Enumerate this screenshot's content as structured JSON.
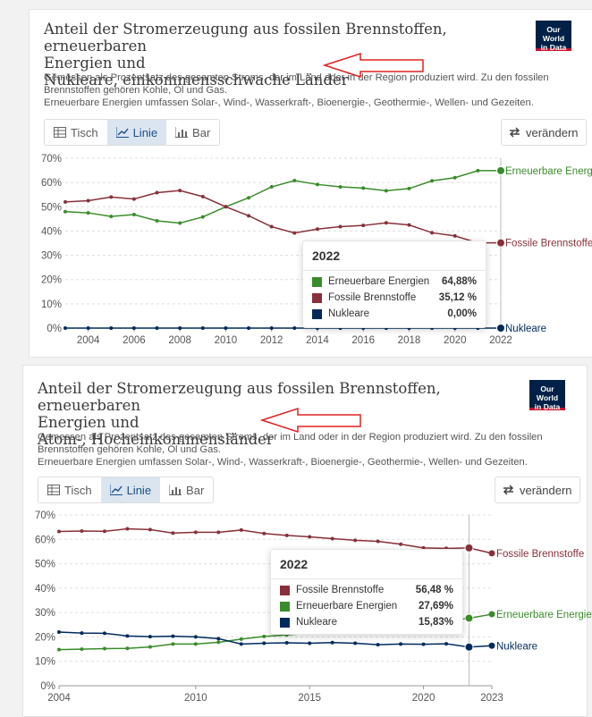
{
  "panels": [
    {
      "title_line1": "Anteil der Stromerzeugung aus fossilen Brennstoffen, erneuerbaren",
      "title_line2": "Energien und",
      "title_line3": "Nukleare, einkommensschwache Länder",
      "subtitle_line1": "Gemessen als Prozentsatz des gesamten Stroms, der im Land oder in der Region produziert wird. Zu den fossilen",
      "subtitle_line2": "Brennstoffen gehören Kohle, Öl und Gas.",
      "subtitle_line3": "Erneuerbare Energien umfassen Solar-, Wind-, Wasserkraft-, Bioenergie-, Geothermie-, Wellen- und Gezeiten.",
      "logo_line1": "Our World",
      "logo_line2": "in Data",
      "tabs": [
        "Tisch",
        "Linie",
        "Bar"
      ],
      "active_tab": "Linie",
      "change_label": "verändern",
      "tooltip": {
        "year": "2022",
        "rows": [
          {
            "name": "Erneuerbare Energien",
            "value": "64,88%",
            "color": "#3a8c2a"
          },
          {
            "name": "Fossile Brennstoffe",
            "value": "35,12 %",
            "color": "#883039"
          },
          {
            "name": "Nukleare",
            "value": "0,00%",
            "color": "#002a5c"
          }
        ]
      }
    },
    {
      "title_line1": "Anteil der Stromerzeugung aus fossilen Brennstoffen, erneuerbaren",
      "title_line2": "Energien und",
      "title_line3": "Atom-, Hocheinkommensländer",
      "subtitle_line1": "Gemessen als Prozentsatz des gesamten Stroms, der im Land oder in der Region produziert wird. Zu den fossilen",
      "subtitle_line2": "Brennstoffen gehören Kohle, Öl und Gas.",
      "subtitle_line3": "Erneuerbare Energien umfassen Solar-, Wind-, Wasserkraft-, Bioenergie-, Geothermie-, Wellen- und Gezeiten.",
      "logo_line1": "Our World",
      "logo_line2": "in Data",
      "tabs": [
        "Tisch",
        "Linie",
        "Bar"
      ],
      "active_tab": "Linie",
      "change_label": "verändern",
      "tooltip": {
        "year": "2022",
        "rows": [
          {
            "name": "Fossile Brennstoffe",
            "value": "56,48 %",
            "color": "#883039"
          },
          {
            "name": "Erneuerbare Energien",
            "value": "27,69%",
            "color": "#3a8c2a"
          },
          {
            "name": "Nukleare",
            "value": "15,83%",
            "color": "#002a5c"
          }
        ]
      }
    }
  ],
  "chart_data": [
    {
      "type": "line",
      "title": "Anteil der Stromerzeugung aus fossilen Brennstoffen, erneuerbaren Energien und Nukleare, einkommensschwache Länder",
      "xlim": [
        2003,
        2022
      ],
      "ylim": [
        0,
        70
      ],
      "x_ticks": [
        "2004",
        "2006",
        "2008",
        "2010",
        "2012",
        "2014",
        "2016",
        "2018",
        "2020",
        "2022"
      ],
      "y_ticks": [
        "0%",
        "10%",
        "20%",
        "30%",
        "40%",
        "50%",
        "60%",
        "70%"
      ],
      "x": [
        2003,
        2004,
        2005,
        2006,
        2007,
        2008,
        2009,
        2010,
        2011,
        2012,
        2013,
        2014,
        2015,
        2016,
        2017,
        2018,
        2019,
        2020,
        2021,
        2022
      ],
      "series": [
        {
          "name": "Erneuerbare Energien",
          "color": "#3a8c2a",
          "values": [
            48,
            47.5,
            46,
            46.8,
            44.2,
            43.3,
            45.8,
            50,
            53.7,
            58.2,
            60.8,
            59.2,
            58.2,
            57.7,
            56.6,
            57.5,
            60.7,
            62,
            64.88,
            64.88
          ]
        },
        {
          "name": "Fossile Brennstoffe",
          "color": "#883039",
          "values": [
            52,
            52.5,
            54,
            53.2,
            55.8,
            56.7,
            54.2,
            50,
            46.3,
            41.8,
            39.2,
            40.8,
            41.8,
            42.3,
            43.4,
            42.5,
            39.3,
            38,
            35.12,
            35.12
          ]
        },
        {
          "name": "Nukleare",
          "color": "#002a5c",
          "values": [
            0,
            0,
            0,
            0,
            0,
            0,
            0,
            0,
            0,
            0,
            0,
            0,
            0,
            0,
            0,
            0,
            0,
            0,
            0,
            0
          ]
        }
      ]
    },
    {
      "type": "line",
      "title": "Anteil der Stromerzeugung aus fossilen Brennstoffen, erneuerbaren Energien und Atom-, Hocheinkommensländer",
      "xlim": [
        2004,
        2023
      ],
      "ylim": [
        0,
        70
      ],
      "x_ticks": [
        "2004",
        "2010",
        "2015",
        "2020",
        "2023"
      ],
      "y_ticks": [
        "0%",
        "10%",
        "20%",
        "30%",
        "40%",
        "50%",
        "60%",
        "70%"
      ],
      "x": [
        2004,
        2005,
        2006,
        2007,
        2008,
        2009,
        2010,
        2011,
        2012,
        2013,
        2014,
        2015,
        2016,
        2017,
        2018,
        2019,
        2020,
        2021,
        2022,
        2023
      ],
      "series": [
        {
          "name": "Fossile Brennstoffe",
          "color": "#883039",
          "values": [
            63.2,
            63.4,
            63.3,
            64.3,
            64.0,
            62.6,
            62.9,
            62.9,
            63.8,
            62.4,
            61.6,
            61.0,
            60.3,
            59.6,
            59.2,
            58.0,
            56.5,
            56.3,
            56.48,
            54.3
          ]
        },
        {
          "name": "Erneuerbare Energien",
          "color": "#3a8c2a",
          "values": [
            14.8,
            15.0,
            15.2,
            15.3,
            15.9,
            17.1,
            17.1,
            17.8,
            19.1,
            20.2,
            20.8,
            21.6,
            22.0,
            23.0,
            24.0,
            24.9,
            26.5,
            26.5,
            27.69,
            29.3
          ]
        },
        {
          "name": "Nukleare",
          "color": "#002a5c",
          "values": [
            22.0,
            21.6,
            21.5,
            20.4,
            20.1,
            20.3,
            20.0,
            19.3,
            17.1,
            17.4,
            17.6,
            17.4,
            17.7,
            17.4,
            16.8,
            17.1,
            17.0,
            17.2,
            15.83,
            16.4
          ]
        }
      ]
    }
  ]
}
